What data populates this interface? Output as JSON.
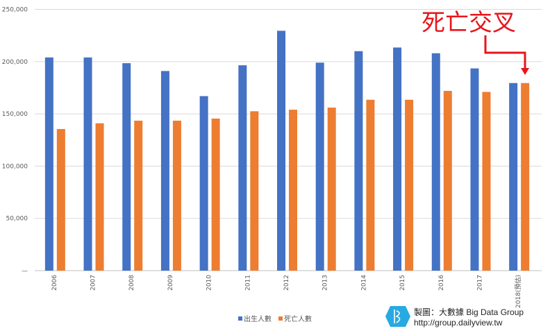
{
  "chart_data": {
    "type": "bar",
    "categories": [
      "2006",
      "2007",
      "2008",
      "2009",
      "2010",
      "2011",
      "2012",
      "2013",
      "2014",
      "2015",
      "2016",
      "2017",
      "2018(預估)"
    ],
    "series": [
      {
        "name": "出生人數",
        "color": "#4472c4",
        "values": [
          204000,
          204000,
          198500,
          191000,
          167000,
          196500,
          229500,
          199000,
          210000,
          213500,
          208000,
          193500,
          179500
        ]
      },
      {
        "name": "死亡人數",
        "color": "#ed7d31",
        "values": [
          135500,
          141000,
          143500,
          143500,
          145500,
          152500,
          154000,
          156000,
          163500,
          163500,
          172000,
          171000,
          179500
        ]
      }
    ],
    "ylim": [
      0,
      250000
    ],
    "yticks": [
      "—",
      "50,000",
      "100,000",
      "150,000",
      "200,000",
      "250,000"
    ],
    "grid": true,
    "legend": "bottom",
    "annotation": "死亡交叉",
    "annotation_color": "#e8141b"
  },
  "credit": {
    "line1": "製圖：大數據 Big Data Group",
    "line2": "http://group.dailyview.tw",
    "logo_color": "#29a9e1"
  }
}
